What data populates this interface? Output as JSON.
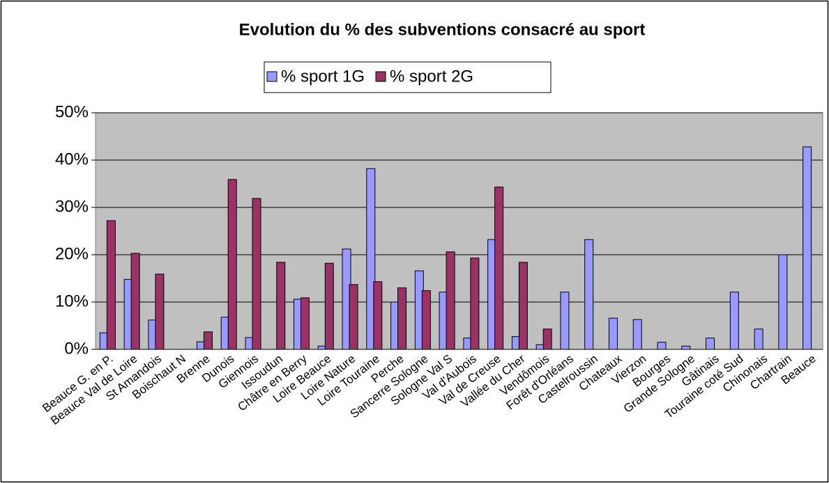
{
  "chart_data": {
    "type": "bar",
    "title": "Evolution du % des subventions consacré au sport",
    "categories": [
      "Beauce G. en P.",
      "Beauce Val de Loire",
      "St Amandois",
      "Boischaut N",
      "Brenne",
      "Dunois",
      "Giennois",
      "Issoudun",
      "Châtre en Berry",
      "Loire Beauce",
      "Loire Nature",
      "Loire Touraine",
      "Perche",
      "Sancerre Sologne",
      "Sologne Val S",
      "Val d'Aubois",
      "Val de Creuse",
      "Vallée du Cher",
      "Vendômois",
      "Forêt d'Orléans",
      "Castelroussin",
      "Chateaux",
      "Vierzon",
      "Bourges",
      "Grande Sologne",
      "Gâtinais",
      "Touraine coté Sud",
      "Chinonais",
      "Chartrain",
      "Beauce"
    ],
    "series": [
      {
        "name": "% sport 1G",
        "color": "#9999ff",
        "values": [
          3.5,
          14.8,
          6.2,
          0,
          1.6,
          6.8,
          2.5,
          0,
          10.6,
          0.7,
          21.2,
          38.2,
          10,
          16.6,
          12.1,
          2.4,
          23.2,
          2.7,
          1,
          12.1,
          23.2,
          6.6,
          6.3,
          1.5,
          0.7,
          2.4,
          12.1,
          4.3,
          20,
          42.8
        ]
      },
      {
        "name": "% sport 2G",
        "color": "#993366",
        "values": [
          27.2,
          20.3,
          15.9,
          0,
          3.7,
          35.9,
          31.9,
          18.4,
          10.9,
          18.2,
          13.7,
          14.3,
          13,
          12.4,
          20.6,
          19.3,
          34.3,
          18.4,
          4.3,
          0,
          0,
          0,
          0,
          0,
          0,
          0,
          0,
          0,
          0,
          0
        ]
      }
    ],
    "ylim": [
      0,
      50
    ],
    "yticks": [
      {
        "value": 0,
        "label": "0%"
      },
      {
        "value": 10,
        "label": "10%"
      },
      {
        "value": 20,
        "label": "20%"
      },
      {
        "value": 30,
        "label": "30%"
      },
      {
        "value": 40,
        "label": "40%"
      },
      {
        "value": 50,
        "label": "50%"
      }
    ],
    "grid": true,
    "legend": "top"
  }
}
